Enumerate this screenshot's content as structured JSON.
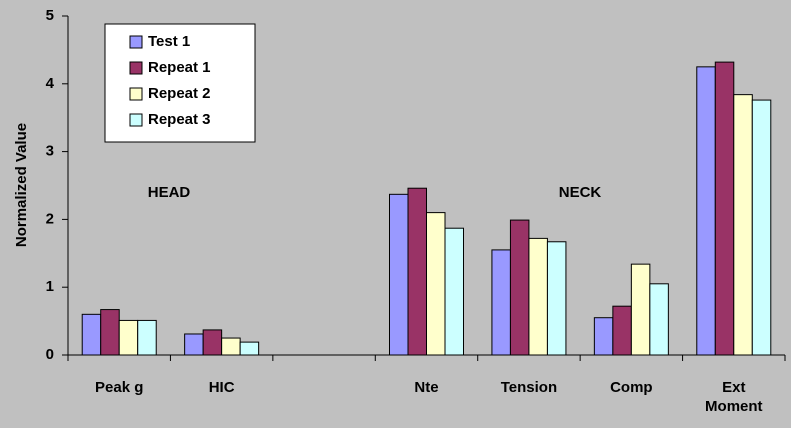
{
  "chart_data": {
    "type": "bar",
    "y_label": "Normalized Value",
    "categories": [
      "Peak g",
      "HIC",
      null,
      "Nte",
      "Tension",
      "Comp",
      "Ext Moment"
    ],
    "series": [
      {
        "name": "Test 1",
        "color": "#9999ff",
        "values": [
          0.6,
          0.31,
          null,
          2.37,
          1.55,
          0.55,
          4.25
        ]
      },
      {
        "name": "Repeat 1",
        "color": "#993366",
        "values": [
          0.67,
          0.37,
          null,
          2.46,
          1.99,
          0.72,
          4.32
        ]
      },
      {
        "name": "Repeat 2",
        "color": "#ffffcc",
        "values": [
          0.51,
          0.25,
          null,
          2.1,
          1.72,
          1.34,
          3.84
        ]
      },
      {
        "name": "Repeat 3",
        "color": "#ccffff",
        "values": [
          0.51,
          0.19,
          null,
          1.87,
          1.67,
          1.05,
          3.76
        ]
      }
    ],
    "annotations": [
      "HEAD",
      "NECK"
    ],
    "ylim": [
      0,
      5
    ],
    "yticks": [
      0,
      1,
      2,
      3,
      4,
      5
    ],
    "grid": false,
    "legend": "upper-left"
  }
}
